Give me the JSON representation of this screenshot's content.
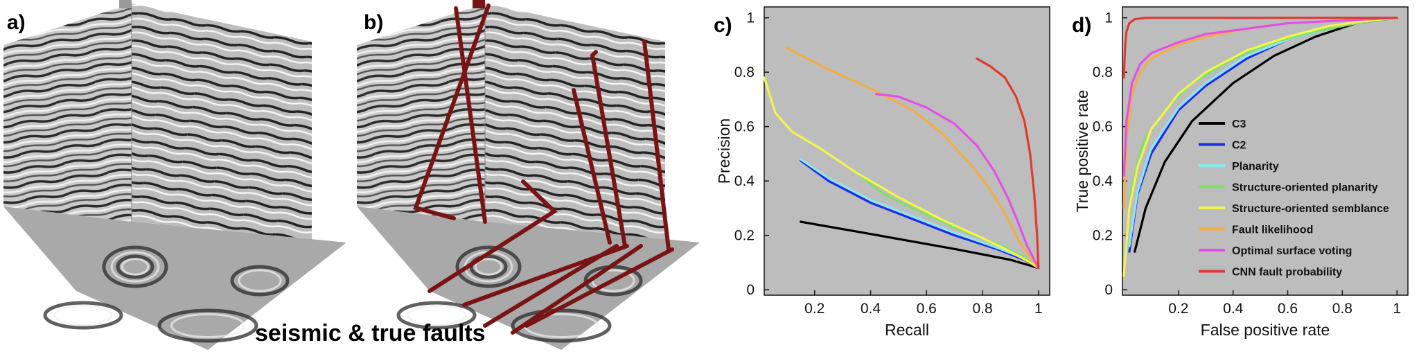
{
  "figure": {
    "labels": {
      "a": "a)",
      "b": "b)",
      "c": "c)",
      "d": "d)"
    },
    "caption": "seismic & true faults"
  },
  "colors": {
    "panel_bg": "#bdbdbd",
    "fault": "#7a1414",
    "C3": "#000000",
    "C2": "#1a2eea",
    "Planarity": "#8ce8f0",
    "Structure-oriented planarity": "#7ee06a",
    "Structure-oriented semblance": "#f4f44c",
    "Fault likelihood": "#f2ad45",
    "Optimal surface voting": "#e64fe6",
    "CNN fault probability": "#e0392f"
  },
  "chart_data": [
    {
      "id": "c",
      "type": "line",
      "title": "",
      "xlabel": "Recall",
      "ylabel": "Precision",
      "xlim": [
        0.02,
        1.04
      ],
      "ylim": [
        -0.02,
        1.04
      ],
      "xticks": [
        0.2,
        0.4,
        0.6,
        0.8,
        1
      ],
      "yticks": [
        0,
        0.2,
        0.4,
        0.6,
        0.8,
        1
      ],
      "xticklabels": [
        "0.2",
        "0.4",
        "0.6",
        "0.8",
        "1"
      ],
      "yticklabels": [
        "0",
        "0.2",
        "0.4",
        "0.6",
        "0.8",
        "1"
      ],
      "series": [
        {
          "name": "C3",
          "x": [
            0.15,
            0.4,
            0.7,
            0.9,
            1.0
          ],
          "y": [
            0.25,
            0.205,
            0.15,
            0.11,
            0.08
          ]
        },
        {
          "name": "C2",
          "x": [
            0.15,
            0.25,
            0.4,
            0.55,
            0.7,
            0.85,
            0.95,
            1.0
          ],
          "y": [
            0.475,
            0.4,
            0.32,
            0.26,
            0.2,
            0.15,
            0.11,
            0.08
          ]
        },
        {
          "name": "Planarity",
          "x": [
            0.15,
            0.25,
            0.4,
            0.55,
            0.7,
            0.85,
            0.95,
            1.0
          ],
          "y": [
            0.48,
            0.41,
            0.33,
            0.27,
            0.21,
            0.155,
            0.115,
            0.08
          ]
        },
        {
          "name": "Structure-oriented planarity",
          "x": [
            0.35,
            0.45,
            0.55,
            0.7,
            0.85,
            0.95,
            1.0
          ],
          "y": [
            0.43,
            0.35,
            0.3,
            0.23,
            0.17,
            0.12,
            0.08
          ]
        },
        {
          "name": "Structure-oriented semblance",
          "x": [
            0.02,
            0.06,
            0.12,
            0.22,
            0.35,
            0.5,
            0.65,
            0.8,
            0.9,
            0.97,
            1.0
          ],
          "y": [
            0.78,
            0.65,
            0.58,
            0.52,
            0.43,
            0.34,
            0.26,
            0.19,
            0.14,
            0.1,
            0.08
          ]
        },
        {
          "name": "Fault likelihood",
          "x": [
            0.1,
            0.25,
            0.4,
            0.55,
            0.65,
            0.75,
            0.82,
            0.88,
            0.93,
            0.97,
            1.0
          ],
          "y": [
            0.89,
            0.81,
            0.74,
            0.66,
            0.58,
            0.47,
            0.38,
            0.28,
            0.18,
            0.12,
            0.08
          ]
        },
        {
          "name": "Optimal surface voting",
          "x": [
            0.42,
            0.5,
            0.6,
            0.7,
            0.78,
            0.84,
            0.89,
            0.93,
            0.96,
            0.985,
            1.0
          ],
          "y": [
            0.72,
            0.71,
            0.67,
            0.61,
            0.53,
            0.44,
            0.34,
            0.24,
            0.16,
            0.11,
            0.08
          ]
        },
        {
          "name": "CNN fault probability",
          "x": [
            0.78,
            0.83,
            0.88,
            0.92,
            0.95,
            0.97,
            0.985,
            0.995,
            1.0
          ],
          "y": [
            0.85,
            0.82,
            0.78,
            0.71,
            0.62,
            0.5,
            0.35,
            0.2,
            0.08
          ]
        }
      ]
    },
    {
      "id": "d",
      "type": "line",
      "title": "",
      "xlabel": "False positive rate",
      "ylabel": "True positive rate",
      "xlim": [
        -0.005,
        1.04
      ],
      "ylim": [
        -0.02,
        1.04
      ],
      "xticks": [
        0.2,
        0.4,
        0.6,
        0.8,
        1
      ],
      "yticks": [
        0,
        0.2,
        0.4,
        0.6,
        0.8,
        1
      ],
      "xticklabels": [
        "0.2",
        "0.4",
        "0.6",
        "0.8",
        "1"
      ],
      "yticklabels": [
        "0",
        "0.2",
        "0.4",
        "0.6",
        "0.8",
        "1"
      ],
      "legend": "center-right",
      "series": [
        {
          "name": "C3",
          "x": [
            0.04,
            0.08,
            0.15,
            0.25,
            0.4,
            0.55,
            0.7,
            0.85,
            1.0
          ],
          "y": [
            0.14,
            0.3,
            0.47,
            0.62,
            0.76,
            0.86,
            0.93,
            0.98,
            1.0
          ]
        },
        {
          "name": "C2",
          "x": [
            0.02,
            0.05,
            0.1,
            0.2,
            0.3,
            0.45,
            0.6,
            0.75,
            0.9,
            1.0
          ],
          "y": [
            0.14,
            0.35,
            0.5,
            0.66,
            0.75,
            0.85,
            0.92,
            0.96,
            0.99,
            1.0
          ]
        },
        {
          "name": "Planarity",
          "x": [
            0.02,
            0.05,
            0.1,
            0.2,
            0.3,
            0.45,
            0.6,
            0.75,
            0.9,
            1.0
          ],
          "y": [
            0.16,
            0.36,
            0.52,
            0.67,
            0.76,
            0.86,
            0.92,
            0.96,
            0.99,
            1.0
          ]
        },
        {
          "name": "Structure-oriented planarity",
          "x": [
            0.01,
            0.03,
            0.07,
            0.15,
            0.25,
            0.4,
            0.55,
            0.7,
            0.85,
            1.0
          ],
          "y": [
            0.2,
            0.38,
            0.54,
            0.66,
            0.76,
            0.85,
            0.91,
            0.95,
            0.98,
            1.0
          ]
        },
        {
          "name": "Structure-oriented semblance",
          "x": [
            0.0,
            0.02,
            0.05,
            0.1,
            0.2,
            0.3,
            0.45,
            0.6,
            0.75,
            0.9,
            1.0
          ],
          "y": [
            0.05,
            0.3,
            0.45,
            0.59,
            0.72,
            0.8,
            0.88,
            0.93,
            0.97,
            0.99,
            1.0
          ]
        },
        {
          "name": "Fault likelihood",
          "x": [
            0.0,
            0.01,
            0.03,
            0.06,
            0.1,
            0.2,
            0.3,
            0.45,
            0.6,
            0.8,
            1.0
          ],
          "y": [
            0.3,
            0.55,
            0.72,
            0.8,
            0.85,
            0.9,
            0.93,
            0.96,
            0.98,
            0.99,
            1.0
          ]
        },
        {
          "name": "Optimal surface voting",
          "x": [
            0.0,
            0.01,
            0.03,
            0.06,
            0.1,
            0.2,
            0.3,
            0.45,
            0.6,
            0.8,
            1.0
          ],
          "y": [
            0.42,
            0.62,
            0.76,
            0.83,
            0.87,
            0.91,
            0.94,
            0.96,
            0.98,
            0.99,
            1.0
          ]
        },
        {
          "name": "CNN fault probability",
          "x": [
            0.0,
            0.005,
            0.01,
            0.02,
            0.04,
            0.08,
            0.2,
            0.5,
            1.0
          ],
          "y": [
            0.78,
            0.9,
            0.95,
            0.98,
            0.995,
            1.0,
            1.0,
            1.0,
            1.0
          ]
        }
      ]
    }
  ]
}
